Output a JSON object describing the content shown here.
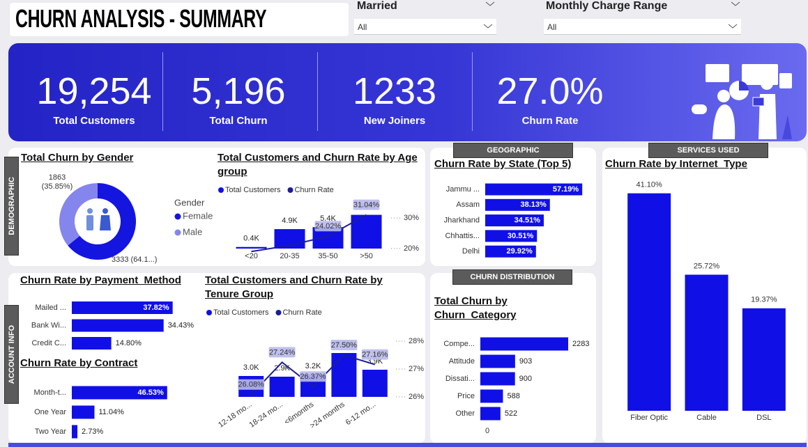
{
  "header": {
    "title": "CHURN ANALYSIS - SUMMARY"
  },
  "filters": [
    {
      "label": "Married",
      "value": "All"
    },
    {
      "label": "Monthly Charge Range",
      "value": "All"
    }
  ],
  "kpis": [
    {
      "value": "19,254",
      "label": "Total Customers"
    },
    {
      "value": "5,196",
      "label": "Total Churn"
    },
    {
      "value": "1233",
      "label": "New Joiners"
    },
    {
      "value": "27.0%",
      "label": "Churn Rate"
    }
  ],
  "sections": {
    "demographic": "DEMOGRAPHIC",
    "account_info": "ACCOUNT INFO",
    "geographic": "GEOGRAPHIC",
    "services_used": "SERVICES USED",
    "churn_distribution": "CHURN DISTRIBUTION"
  },
  "chart_data": [
    {
      "type": "donut",
      "title": "Total Churn by Gender",
      "legend_title": "Gender",
      "categories": [
        "Female",
        "Male"
      ],
      "values": [
        3333,
        1863
      ],
      "value_labels": [
        "3333 (64.1...)",
        "1863 (35.85%)"
      ],
      "colors": [
        "#1515e0",
        "#8585ee"
      ]
    },
    {
      "type": "combo",
      "title": "Total Customers and Churn Rate by Age group",
      "categories": [
        "<20",
        "20-35",
        "35-50",
        ">50"
      ],
      "series": [
        {
          "name": "Total Customers",
          "color": "#1010e6",
          "values": [
            400,
            4900,
            5400,
            8500
          ],
          "value_labels": [
            "0.4K",
            "4.9K",
            "5.4K",
            "8.5K"
          ]
        },
        {
          "name": "Churn Rate",
          "color": "#1c1c9c",
          "axis": "y2",
          "values": [
            19,
            21,
            24.02,
            31.04
          ],
          "value_labels": [
            null,
            null,
            "24.02%",
            "31.04%"
          ]
        }
      ],
      "ylim": [
        0,
        10000
      ],
      "y2lim": [
        17,
        33
      ],
      "y2ticks": [
        {
          "value": 20,
          "label": "20%"
        },
        {
          "value": 30,
          "label": "30%"
        }
      ]
    },
    {
      "type": "hbar",
      "title": "Churn Rate by State (Top 5)",
      "categories": [
        "Jammu ...",
        "Assam",
        "Jharkhand",
        "Chhattis...",
        "Delhi"
      ],
      "values": [
        57.19,
        38.13,
        34.51,
        30.51,
        29.92
      ],
      "value_labels": [
        "57.19%",
        "38.13%",
        "34.51%",
        "30.51%",
        "29.92%"
      ],
      "color": "#1010e6",
      "xlim": [
        0,
        60
      ]
    },
    {
      "type": "vbar",
      "title": "Churn Rate by Internet_Type",
      "categories": [
        "Fiber Optic",
        "Cable",
        "DSL"
      ],
      "values": [
        41.1,
        25.72,
        19.37
      ],
      "value_labels": [
        "41.10%",
        "25.72%",
        "19.37%"
      ],
      "color": "#1010e6",
      "ylim": [
        0,
        45
      ]
    },
    {
      "type": "hbar",
      "title": "Churn Rate by Payment_Method",
      "categories": [
        "Mailed ...",
        "Bank Wi...",
        "Credit C..."
      ],
      "values": [
        37.82,
        34.43,
        14.8
      ],
      "value_labels": [
        "37.82%",
        "34.43%",
        "14.80%"
      ],
      "color": "#1010e6",
      "xlim": [
        0,
        40
      ]
    },
    {
      "type": "hbar",
      "title": "Churn Rate by Contract",
      "categories": [
        "Month-t...",
        "One Year",
        "Two Year"
      ],
      "values": [
        46.53,
        11.04,
        2.73
      ],
      "value_labels": [
        "46.53%",
        "11.04%",
        "2.73%"
      ],
      "color": "#1010e6",
      "xlim": [
        0,
        50
      ]
    },
    {
      "type": "combo",
      "title": "Total Customers and Churn Rate by Tenure Group",
      "categories": [
        "12-18 mo...",
        "18-24 mo...",
        "<6months",
        ">24 months",
        "6-12 mo..."
      ],
      "series": [
        {
          "name": "Total Customers",
          "color": "#1010e6",
          "values": [
            3000,
            2900,
            3200,
            6300,
            3900
          ],
          "value_labels": [
            "3.0K",
            "2.9K",
            "3.2K",
            "6.3K",
            "3.9K"
          ]
        },
        {
          "name": "Churn Rate",
          "color": "#1c1c9c",
          "axis": "y2",
          "values": [
            26.08,
            27.24,
            26.37,
            27.5,
            27.16
          ],
          "value_labels": [
            "26.08%",
            "27.24%",
            "26.37%",
            "27.50%",
            "27.16%"
          ]
        }
      ],
      "ylim": [
        0,
        8000
      ],
      "y2lim": [
        26,
        28
      ],
      "y2ticks": [
        {
          "value": 26,
          "label": "26%"
        },
        {
          "value": 27,
          "label": "27%"
        },
        {
          "value": 28,
          "label": "28%"
        }
      ]
    },
    {
      "type": "hbar",
      "title": "Total Churn by Churn_Category",
      "categories": [
        "Compe...",
        "Attitude",
        "Dissati...",
        "Price",
        "Other"
      ],
      "values": [
        2283,
        903,
        900,
        588,
        522
      ],
      "color": "#1010e6",
      "xlim": [
        0,
        2500
      ],
      "xticks": [
        0
      ]
    }
  ]
}
